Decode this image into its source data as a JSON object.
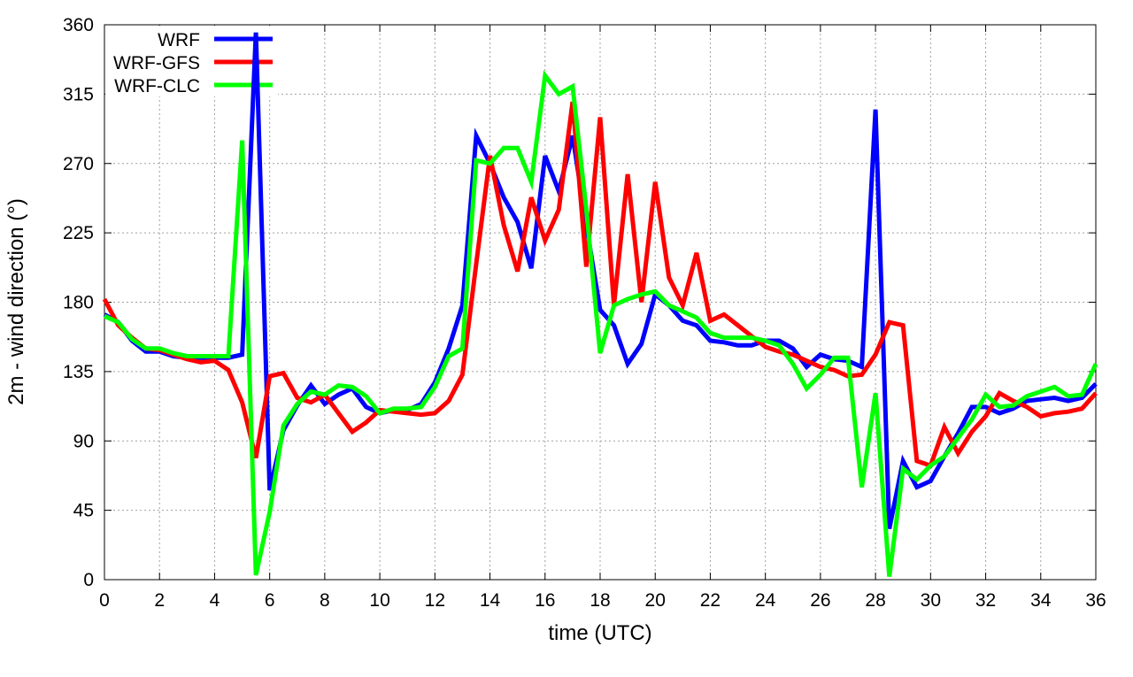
{
  "chart_data": {
    "type": "line",
    "title": "",
    "xlabel": "time (UTC)",
    "ylabel": "2m - wind direction (°)",
    "xlim": [
      0,
      36
    ],
    "ylim": [
      0,
      360
    ],
    "xticks": [
      0,
      2,
      4,
      6,
      8,
      10,
      12,
      14,
      16,
      18,
      20,
      22,
      24,
      26,
      28,
      30,
      32,
      34,
      36
    ],
    "yticks": [
      0,
      45,
      90,
      135,
      180,
      225,
      270,
      315,
      360
    ],
    "grid": true,
    "legend_position": "top-left",
    "x_step": 0.5,
    "series": [
      {
        "name": "WRF",
        "color": "#0000ff",
        "values": [
          172,
          167,
          155,
          148,
          148,
          145,
          144,
          144,
          144,
          144,
          146,
          355,
          58,
          97,
          113,
          126,
          114,
          120,
          124,
          112,
          108,
          110,
          110,
          114,
          128,
          150,
          178,
          288,
          270,
          248,
          232,
          202,
          275,
          252,
          288,
          230,
          175,
          165,
          140,
          153,
          185,
          178,
          168,
          165,
          155,
          154,
          152,
          152,
          155,
          155,
          150,
          138,
          146,
          143,
          142,
          138,
          305,
          33,
          77,
          60,
          64,
          80,
          95,
          112,
          112,
          108,
          111,
          116,
          117,
          118,
          116,
          118,
          127
        ]
      },
      {
        "name": "WRF-GFS",
        "color": "#ff0000",
        "values": [
          182,
          165,
          157,
          150,
          149,
          146,
          143,
          141,
          142,
          136,
          115,
          79,
          132,
          134,
          118,
          115,
          120,
          108,
          96,
          102,
          110,
          109,
          108,
          107,
          108,
          116,
          133,
          205,
          275,
          230,
          200,
          248,
          220,
          240,
          310,
          203,
          300,
          178,
          263,
          180,
          258,
          196,
          178,
          212,
          168,
          172,
          165,
          158,
          151,
          148,
          146,
          142,
          138,
          136,
          132,
          133,
          146,
          167,
          165,
          77,
          74,
          99,
          82,
          96,
          106,
          121,
          116,
          112,
          106,
          108,
          109,
          111,
          121
        ]
      },
      {
        "name": "WRF-CLC",
        "color": "#00ff00",
        "values": [
          171,
          167,
          156,
          150,
          150,
          147,
          145,
          145,
          145,
          145,
          285,
          3,
          44,
          100,
          114,
          122,
          120,
          126,
          125,
          119,
          108,
          111,
          111,
          112,
          125,
          145,
          150,
          272,
          270,
          280,
          280,
          258,
          327,
          315,
          320,
          240,
          147,
          178,
          182,
          185,
          187,
          178,
          174,
          170,
          160,
          157,
          157,
          157,
          155,
          152,
          140,
          124,
          133,
          144,
          144,
          60,
          121,
          2,
          72,
          65,
          74,
          80,
          92,
          104,
          120,
          112,
          113,
          119,
          122,
          125,
          119,
          120,
          140
        ]
      }
    ]
  }
}
